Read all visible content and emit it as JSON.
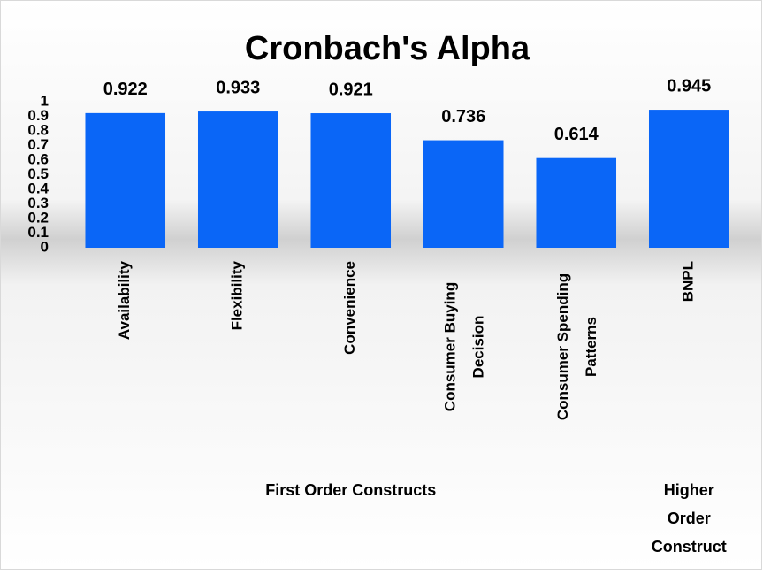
{
  "chart_data": {
    "type": "bar",
    "title": "Cronbach's Alpha",
    "categories": [
      "Availability",
      "Flexibility",
      "Convenience",
      "Consumer Buying Decision",
      "Consumer Spending Patterns",
      "BNPL"
    ],
    "values": [
      0.922,
      0.933,
      0.921,
      0.736,
      0.614,
      0.945
    ],
    "color": "#0a66f7",
    "ylim": [
      0,
      1
    ],
    "yticks": [
      0,
      0.1,
      0.2,
      0.3,
      0.4,
      0.5,
      0.6,
      0.7,
      0.8,
      0.9,
      1
    ],
    "grid": false,
    "groups": [
      {
        "label": "First Order Constructs",
        "span": [
          0,
          4
        ]
      },
      {
        "label": "Higher Order Construct",
        "span": [
          5,
          5
        ]
      }
    ]
  }
}
